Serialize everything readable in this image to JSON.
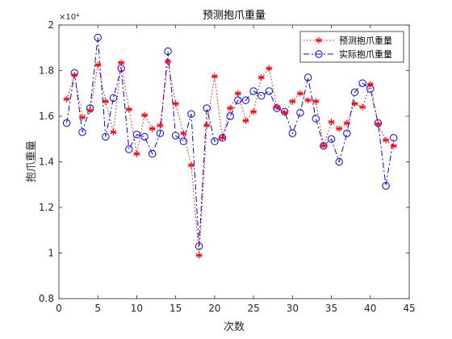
{
  "chart_data": {
    "type": "line",
    "title": "预测抱爪重量",
    "xlabel": "次数",
    "ylabel": "抱爪重量",
    "xlim": [
      0,
      45
    ],
    "ylim": [
      0.8,
      2
    ],
    "y_exponent_label": "×10⁴",
    "x_ticks": [
      "0",
      "5",
      "10",
      "15",
      "20",
      "25",
      "30",
      "35",
      "40",
      "45"
    ],
    "y_ticks": [
      "0.8",
      "1",
      "1.2",
      "1.4",
      "1.6",
      "1.8",
      "2"
    ],
    "legend_position": "top-right",
    "grid": false,
    "x": [
      1,
      2,
      3,
      4,
      5,
      6,
      7,
      8,
      9,
      10,
      11,
      12,
      13,
      14,
      15,
      16,
      17,
      18,
      19,
      20,
      21,
      22,
      23,
      24,
      25,
      26,
      27,
      28,
      29,
      30,
      31,
      32,
      33,
      34,
      35,
      36,
      37,
      38,
      39,
      40,
      41,
      42,
      43
    ],
    "series": [
      {
        "name": "预测抱爪重量",
        "color": "#ff0000",
        "line_style": "dotted",
        "marker": "asterisk",
        "values": [
          1.675,
          1.78,
          1.595,
          1.625,
          1.825,
          1.665,
          1.53,
          1.835,
          1.63,
          1.435,
          1.605,
          1.545,
          1.56,
          1.84,
          1.655,
          1.525,
          1.385,
          0.99,
          1.56,
          1.775,
          1.505,
          1.635,
          1.7,
          1.58,
          1.62,
          1.77,
          1.81,
          1.64,
          1.615,
          1.665,
          1.7,
          1.67,
          1.665,
          1.47,
          1.575,
          1.545,
          1.57,
          1.655,
          1.64,
          1.74,
          1.565,
          1.495,
          1.47
        ]
      },
      {
        "name": "实际抱爪重量",
        "color": "#0000ff",
        "line_style": "dashdot",
        "marker": "circle",
        "values": [
          1.57,
          1.79,
          1.53,
          1.635,
          1.945,
          1.51,
          1.68,
          1.81,
          1.455,
          1.52,
          1.51,
          1.435,
          1.525,
          1.885,
          1.515,
          1.49,
          1.61,
          1.03,
          1.635,
          1.49,
          1.505,
          1.6,
          1.67,
          1.67,
          1.71,
          1.69,
          1.71,
          1.635,
          1.62,
          1.525,
          1.615,
          1.77,
          1.59,
          1.47,
          1.5,
          1.4,
          1.525,
          1.705,
          1.745,
          1.72,
          1.57,
          1.295,
          1.505
        ]
      }
    ]
  }
}
